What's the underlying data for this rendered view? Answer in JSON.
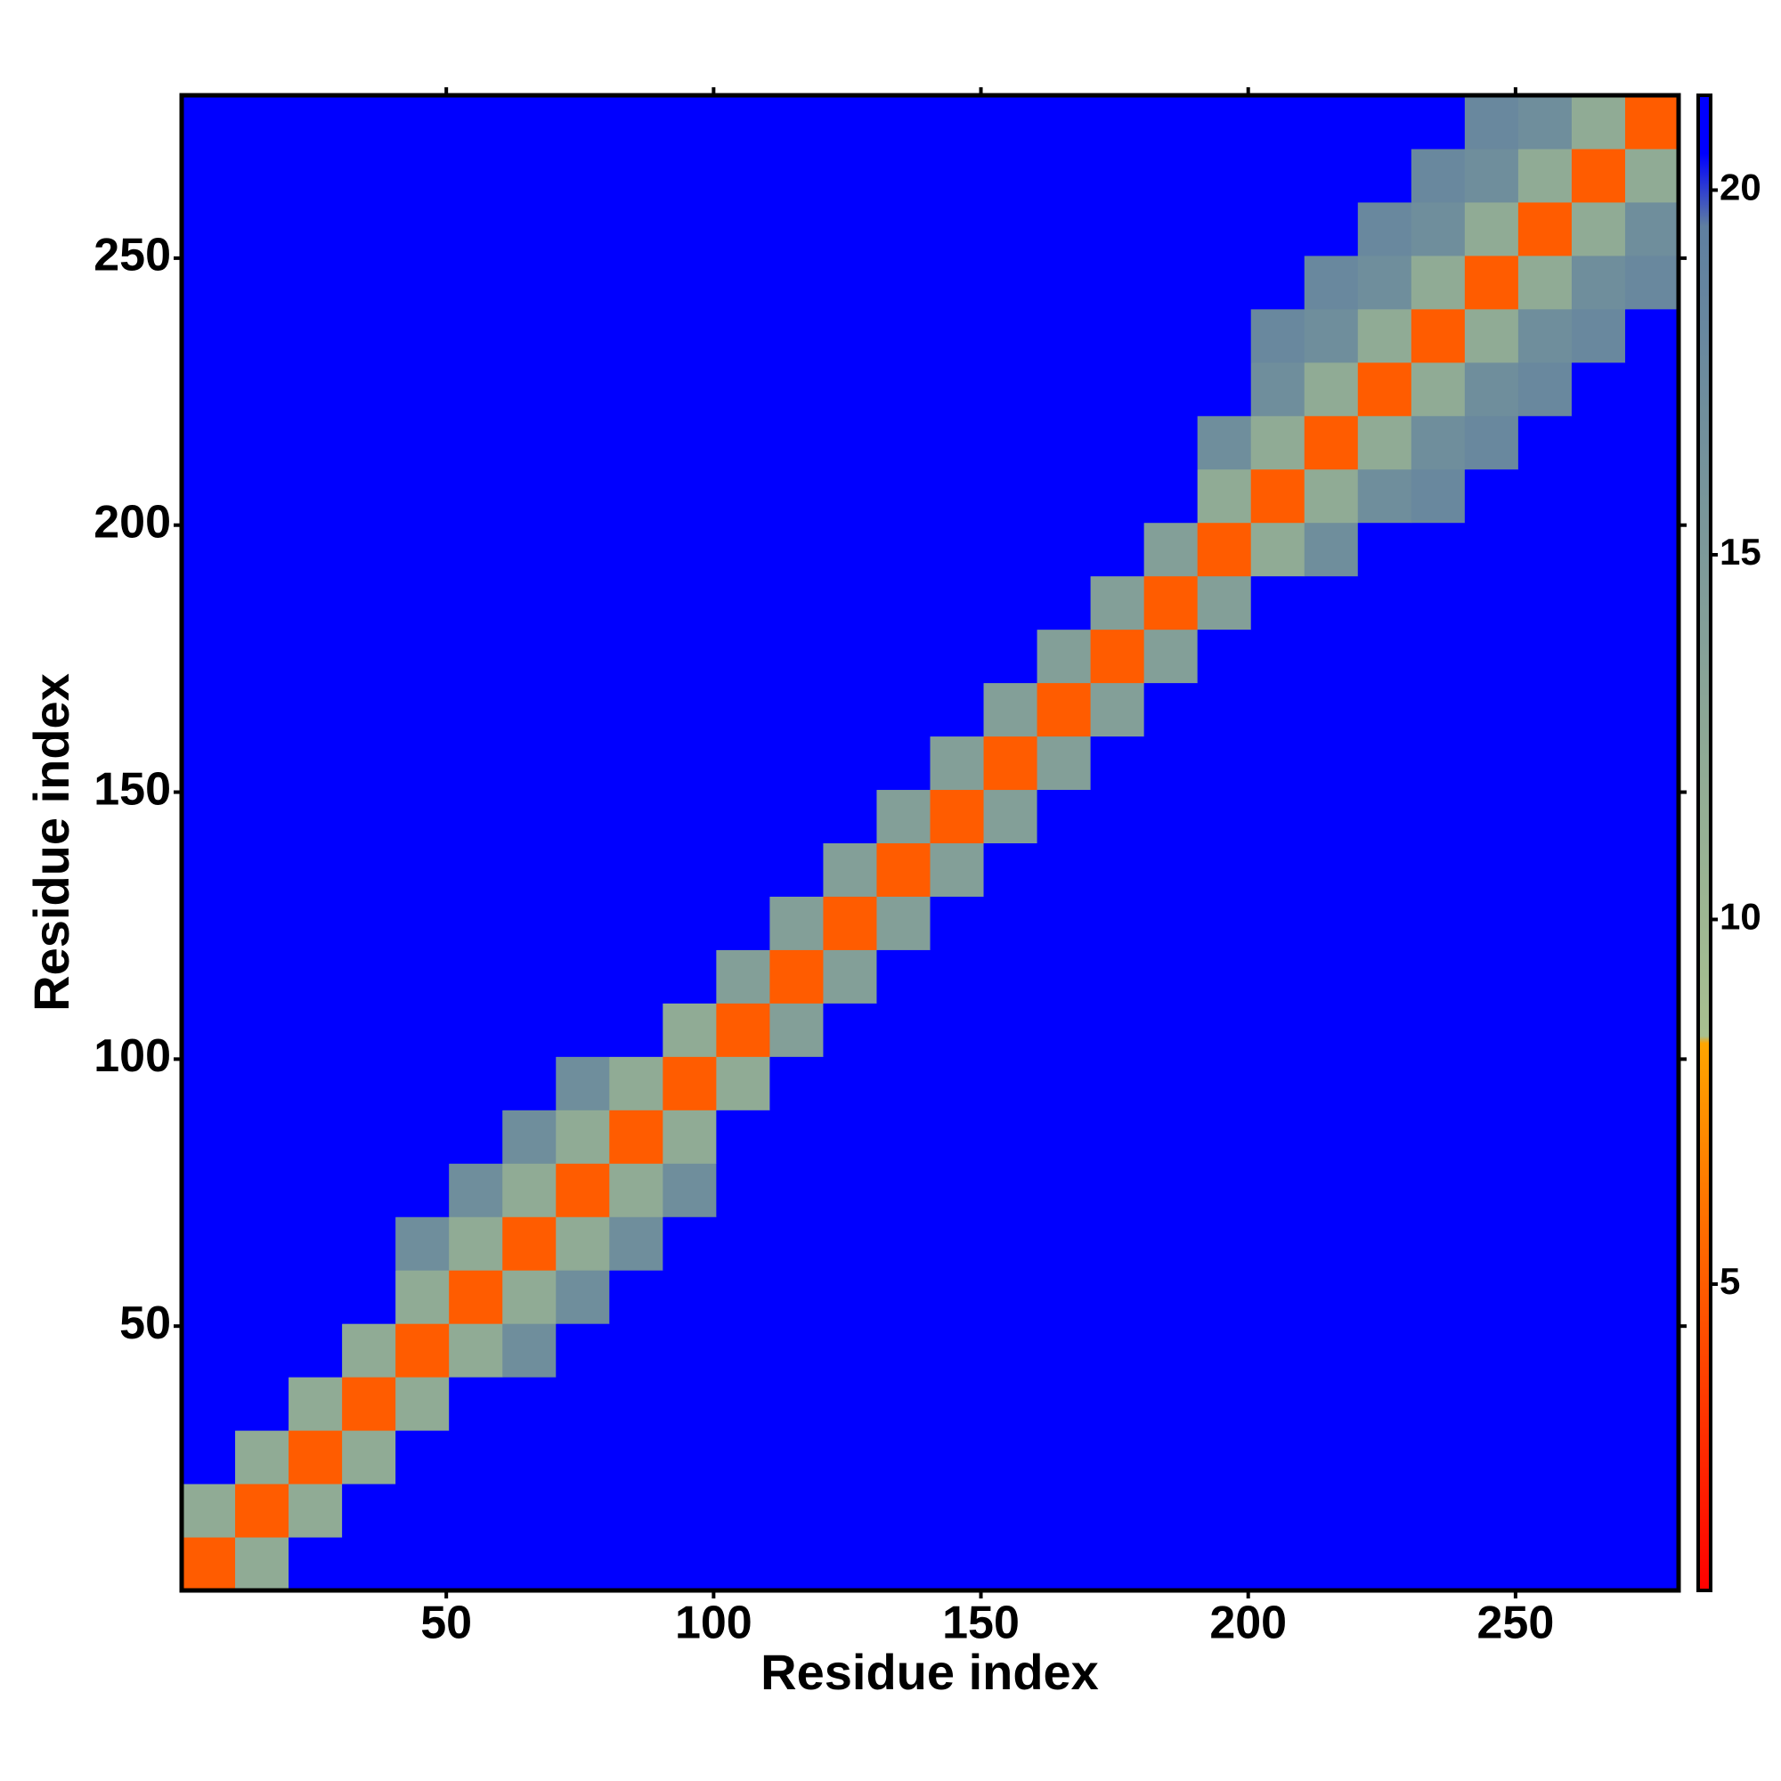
{
  "chart_data": {
    "type": "heatmap",
    "xlabel": "Residue index",
    "ylabel": "Residue index",
    "bins": [
      0.5,
      10.5,
      20.5,
      30.5,
      40.5,
      50.5,
      60.5,
      70.5,
      80.5,
      90.5,
      100.5,
      110.5,
      120.5,
      130.5,
      140.5,
      150.5,
      160.5,
      170.5,
      180.5,
      190.5,
      200.5,
      210.5,
      220.5,
      230.5,
      240.5,
      250.5,
      260.5,
      270.5,
      280.5
    ],
    "values": [
      [
        5,
        12,
        21,
        21,
        21,
        21,
        21,
        21,
        21,
        21,
        21,
        21,
        21,
        21,
        21,
        21,
        21,
        21,
        21,
        21,
        21,
        21,
        21,
        21,
        21,
        21,
        21,
        21
      ],
      [
        12,
        5,
        12,
        21,
        21,
        21,
        21,
        21,
        21,
        21,
        21,
        21,
        21,
        21,
        21,
        21,
        21,
        21,
        21,
        21,
        21,
        21,
        21,
        21,
        21,
        21,
        21,
        21
      ],
      [
        21,
        12,
        5,
        12,
        21,
        21,
        21,
        21,
        21,
        21,
        21,
        21,
        21,
        21,
        21,
        21,
        21,
        21,
        21,
        21,
        21,
        21,
        21,
        21,
        21,
        21,
        21,
        21
      ],
      [
        21,
        21,
        12,
        5,
        12,
        21,
        21,
        21,
        21,
        21,
        21,
        21,
        21,
        21,
        21,
        21,
        21,
        21,
        21,
        21,
        21,
        21,
        21,
        21,
        21,
        21,
        21,
        21
      ],
      [
        21,
        21,
        21,
        12,
        5,
        12,
        17,
        21,
        21,
        21,
        21,
        21,
        21,
        21,
        21,
        21,
        21,
        21,
        21,
        21,
        21,
        21,
        21,
        21,
        21,
        21,
        21,
        21
      ],
      [
        21,
        21,
        21,
        21,
        12,
        5,
        12,
        17,
        21,
        21,
        21,
        21,
        21,
        21,
        21,
        21,
        21,
        21,
        21,
        21,
        21,
        21,
        21,
        21,
        21,
        21,
        21,
        21
      ],
      [
        21,
        21,
        21,
        21,
        17,
        12,
        5,
        12,
        17,
        21,
        21,
        21,
        21,
        21,
        21,
        21,
        21,
        21,
        21,
        21,
        21,
        21,
        21,
        21,
        21,
        21,
        21,
        21
      ],
      [
        21,
        21,
        21,
        21,
        21,
        17,
        12,
        5,
        12,
        17,
        21,
        21,
        21,
        21,
        21,
        21,
        21,
        21,
        21,
        21,
        21,
        21,
        21,
        21,
        21,
        21,
        21,
        21
      ],
      [
        21,
        21,
        21,
        21,
        21,
        21,
        17,
        12,
        5,
        12,
        21,
        21,
        21,
        21,
        21,
        21,
        21,
        21,
        21,
        21,
        21,
        21,
        21,
        21,
        21,
        21,
        21,
        21
      ],
      [
        21,
        21,
        21,
        21,
        21,
        21,
        21,
        17,
        12,
        5,
        12,
        21,
        21,
        21,
        21,
        21,
        21,
        21,
        21,
        21,
        21,
        21,
        21,
        21,
        21,
        21,
        21,
        21
      ],
      [
        21,
        21,
        21,
        21,
        21,
        21,
        21,
        21,
        21,
        12,
        5,
        14,
        21,
        21,
        21,
        21,
        21,
        21,
        21,
        21,
        21,
        21,
        21,
        21,
        21,
        21,
        21,
        21
      ],
      [
        21,
        21,
        21,
        21,
        21,
        21,
        21,
        21,
        21,
        21,
        14,
        5,
        14,
        21,
        21,
        21,
        21,
        21,
        21,
        21,
        21,
        21,
        21,
        21,
        21,
        21,
        21,
        21
      ],
      [
        21,
        21,
        21,
        21,
        21,
        21,
        21,
        21,
        21,
        21,
        21,
        14,
        5,
        14,
        21,
        21,
        21,
        21,
        21,
        21,
        21,
        21,
        21,
        21,
        21,
        21,
        21,
        21
      ],
      [
        21,
        21,
        21,
        21,
        21,
        21,
        21,
        21,
        21,
        21,
        21,
        21,
        14,
        5,
        14,
        21,
        21,
        21,
        21,
        21,
        21,
        21,
        21,
        21,
        21,
        21,
        21,
        21
      ],
      [
        21,
        21,
        21,
        21,
        21,
        21,
        21,
        21,
        21,
        21,
        21,
        21,
        21,
        14,
        5,
        14,
        21,
        21,
        21,
        21,
        21,
        21,
        21,
        21,
        21,
        21,
        21,
        21
      ],
      [
        21,
        21,
        21,
        21,
        21,
        21,
        21,
        21,
        21,
        21,
        21,
        21,
        21,
        21,
        14,
        5,
        14,
        21,
        21,
        21,
        21,
        21,
        21,
        21,
        21,
        21,
        21,
        21
      ],
      [
        21,
        21,
        21,
        21,
        21,
        21,
        21,
        21,
        21,
        21,
        21,
        21,
        21,
        21,
        21,
        14,
        5,
        14,
        21,
        21,
        21,
        21,
        21,
        21,
        21,
        21,
        21,
        21
      ],
      [
        21,
        21,
        21,
        21,
        21,
        21,
        21,
        21,
        21,
        21,
        21,
        21,
        21,
        21,
        21,
        21,
        14,
        5,
        14,
        21,
        21,
        21,
        21,
        21,
        21,
        21,
        21,
        21
      ],
      [
        21,
        21,
        21,
        21,
        21,
        21,
        21,
        21,
        21,
        21,
        21,
        21,
        21,
        21,
        21,
        21,
        21,
        14,
        5,
        14,
        21,
        21,
        21,
        21,
        21,
        21,
        21,
        21
      ],
      [
        21,
        21,
        21,
        21,
        21,
        21,
        21,
        21,
        21,
        21,
        21,
        21,
        21,
        21,
        21,
        21,
        21,
        21,
        14,
        5,
        12,
        17,
        21,
        21,
        21,
        21,
        21,
        21
      ],
      [
        21,
        21,
        21,
        21,
        21,
        21,
        21,
        21,
        21,
        21,
        21,
        21,
        21,
        21,
        21,
        21,
        21,
        21,
        21,
        12,
        5,
        12,
        17,
        18,
        21,
        21,
        21,
        21
      ],
      [
        21,
        21,
        21,
        21,
        21,
        21,
        21,
        21,
        21,
        21,
        21,
        21,
        21,
        21,
        21,
        21,
        21,
        21,
        21,
        17,
        12,
        5,
        12,
        17,
        18,
        21,
        21,
        21
      ],
      [
        21,
        21,
        21,
        21,
        21,
        21,
        21,
        21,
        21,
        21,
        21,
        21,
        21,
        21,
        21,
        21,
        21,
        21,
        21,
        21,
        17,
        12,
        5,
        12,
        17,
        18,
        21,
        21
      ],
      [
        21,
        21,
        21,
        21,
        21,
        21,
        21,
        21,
        21,
        21,
        21,
        21,
        21,
        21,
        21,
        21,
        21,
        21,
        21,
        21,
        18,
        17,
        12,
        5,
        12,
        17,
        18,
        21
      ],
      [
        21,
        21,
        21,
        21,
        21,
        21,
        21,
        21,
        21,
        21,
        21,
        21,
        21,
        21,
        21,
        21,
        21,
        21,
        21,
        21,
        21,
        18,
        17,
        12,
        5,
        12,
        17,
        18
      ],
      [
        21,
        21,
        21,
        21,
        21,
        21,
        21,
        21,
        21,
        21,
        21,
        21,
        21,
        21,
        21,
        21,
        21,
        21,
        21,
        21,
        21,
        21,
        18,
        17,
        12,
        5,
        12,
        17
      ],
      [
        21,
        21,
        21,
        21,
        21,
        21,
        21,
        21,
        21,
        21,
        21,
        21,
        21,
        21,
        21,
        21,
        21,
        21,
        21,
        21,
        21,
        21,
        21,
        18,
        17,
        12,
        5,
        12
      ],
      [
        21,
        21,
        21,
        21,
        21,
        21,
        21,
        21,
        21,
        21,
        21,
        21,
        21,
        21,
        21,
        21,
        21,
        21,
        21,
        21,
        21,
        21,
        21,
        21,
        18,
        17,
        12,
        5
      ]
    ],
    "xlim": [
      0.5,
      280.5
    ],
    "ylim": [
      0.5,
      280.5
    ],
    "xticks": [
      50,
      100,
      150,
      200,
      250
    ],
    "yticks": [
      50,
      100,
      150,
      200,
      250
    ],
    "zlim": [
      0.8,
      21.3
    ],
    "zticks": [
      5,
      10,
      15,
      20
    ],
    "colorscale": [
      {
        "value": 0.8,
        "color": "#ff0000"
      },
      {
        "value": 8.3,
        "color": "#ffa500"
      },
      {
        "value": 8.4,
        "color": "#a8c090"
      },
      {
        "value": 19.5,
        "color": "#5f7fa0"
      },
      {
        "value": 20.5,
        "color": "#0000ff"
      }
    ]
  }
}
